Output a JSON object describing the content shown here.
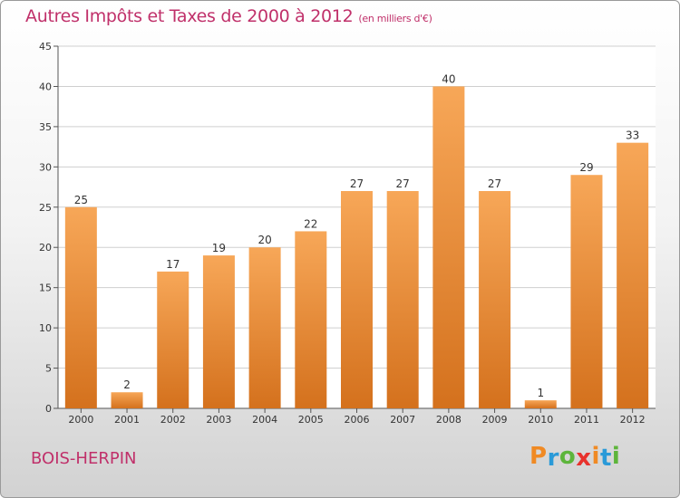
{
  "header": {
    "title": "Autres Impôts et Taxes de 2000 à 2012",
    "unit": "(en milliers d'€)"
  },
  "footer": {
    "commune": "BOIS-HERPIN",
    "logo_letters": [
      "P",
      "r",
      "o",
      "x",
      "i",
      "t",
      "i"
    ],
    "logo_colors": [
      "#f08a24",
      "#2a9ad8",
      "#5db53b",
      "#e8322d",
      "#f08a24",
      "#2a9ad8",
      "#5db53b"
    ]
  },
  "colors": {
    "bar_top": "#f7a758",
    "bar_bottom": "#d4711d",
    "text_accent": "#c0306a",
    "grid": "#cfcfcf"
  },
  "chart_data": {
    "type": "bar",
    "categories": [
      "2000",
      "2001",
      "2002",
      "2003",
      "2004",
      "2005",
      "2006",
      "2007",
      "2008",
      "2009",
      "2010",
      "2011",
      "2012"
    ],
    "values": [
      25,
      2,
      17,
      19,
      20,
      22,
      27,
      27,
      40,
      27,
      1,
      29,
      33
    ],
    "ylim": [
      0,
      45
    ],
    "yticks": [
      0,
      5,
      10,
      15,
      20,
      25,
      30,
      35,
      40,
      45
    ],
    "grid": true
  }
}
